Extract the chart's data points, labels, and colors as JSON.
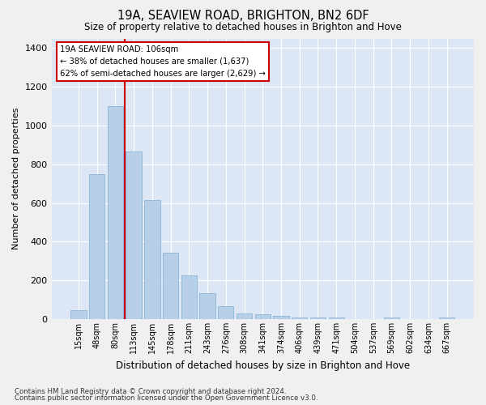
{
  "title": "19A, SEAVIEW ROAD, BRIGHTON, BN2 6DF",
  "subtitle": "Size of property relative to detached houses in Brighton and Hove",
  "xlabel": "Distribution of detached houses by size in Brighton and Hove",
  "ylabel": "Number of detached properties",
  "footnote1": "Contains HM Land Registry data © Crown copyright and database right 2024.",
  "footnote2": "Contains public sector information licensed under the Open Government Licence v3.0.",
  "annotation_title": "19A SEAVIEW ROAD: 106sqm",
  "annotation_line1": "← 38% of detached houses are smaller (1,637)",
  "annotation_line2": "62% of semi-detached houses are larger (2,629) →",
  "bar_heights": [
    48,
    750,
    1100,
    865,
    615,
    345,
    225,
    135,
    65,
    30,
    25,
    15,
    10,
    10,
    10,
    0,
    0,
    10,
    0,
    0,
    10
  ],
  "bar_labels": [
    "15sqm",
    "48sqm",
    "80sqm",
    "113sqm",
    "145sqm",
    "178sqm",
    "211sqm",
    "243sqm",
    "276sqm",
    "308sqm",
    "341sqm",
    "374sqm",
    "406sqm",
    "439sqm",
    "471sqm",
    "504sqm",
    "537sqm",
    "569sqm",
    "602sqm",
    "634sqm",
    "667sqm"
  ],
  "bar_color": "#b8cfe8",
  "bar_edge_color": "#7aadd4",
  "bg_color": "#dce6f5",
  "grid_color": "#ffffff",
  "fig_bg_color": "#f0f0f0",
  "vline_color": "#cc0000",
  "vline_x": 2.5,
  "annotation_box_color": "#ffffff",
  "annotation_box_edge": "#cc0000",
  "ylim": [
    0,
    1450
  ],
  "yticks": [
    0,
    200,
    400,
    600,
    800,
    1000,
    1200,
    1400
  ]
}
